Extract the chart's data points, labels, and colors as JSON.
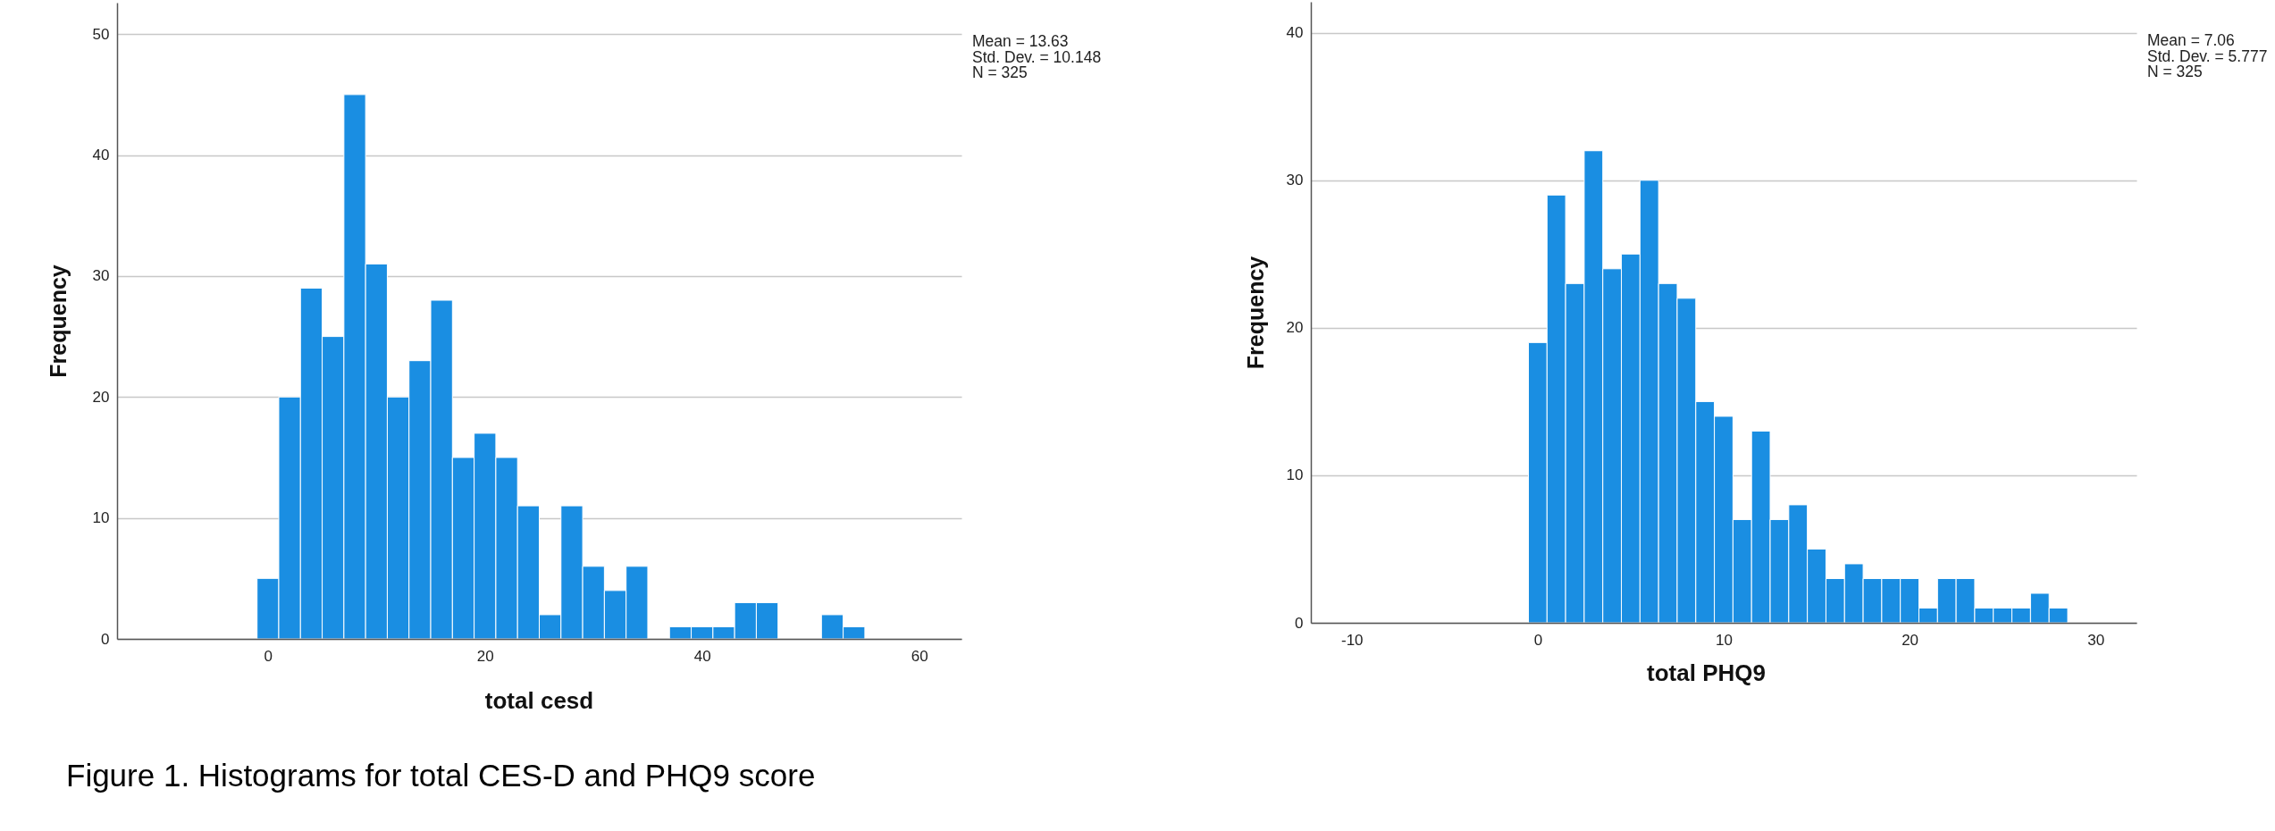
{
  "chart_data": [
    {
      "type": "histogram",
      "xlabel": "total cesd",
      "ylabel": "Frequency",
      "bins": [
        -1,
        1,
        3,
        5,
        7,
        9,
        11,
        13,
        15,
        17,
        19,
        21,
        23,
        25,
        27,
        29,
        31,
        33,
        35,
        37,
        39,
        41,
        43,
        45,
        47,
        49,
        51,
        53,
        55
      ],
      "values": [
        5,
        20,
        29,
        25,
        45,
        31,
        20,
        23,
        28,
        15,
        17,
        15,
        11,
        2,
        11,
        6,
        4,
        6,
        0,
        1,
        1,
        1,
        3,
        3,
        0,
        0,
        2,
        1
      ],
      "color": "#1a8ee2",
      "xlim": [
        -13.9,
        63.9
      ],
      "ylim": [
        0,
        52.6
      ],
      "xticks": [
        0,
        20,
        40,
        60
      ],
      "yticks": [
        0,
        10,
        20,
        30,
        40,
        50
      ],
      "grid": "y",
      "annotations": [
        "Mean = 13.63",
        "Std. Dev. = 10.148",
        "N = 325",
        "Figure 1. Histograms for total CES-D and PHQ9 score"
      ]
    },
    {
      "type": "histogram",
      "xlabel": "total PHQ9",
      "ylabel": "Frequency",
      "bins": [
        -0.5,
        0.5,
        1.5,
        2.5,
        3.5,
        4.5,
        5.5,
        6.5,
        7.5,
        8.5,
        9.5,
        10.5,
        11.5,
        12.5,
        13.5,
        14.5,
        15.5,
        16.5,
        17.5,
        18.5,
        19.5,
        20.5,
        21.5,
        22.5,
        23.5,
        24.5,
        25.5,
        26.5,
        27.5,
        28.5
      ],
      "values": [
        19,
        29,
        23,
        32,
        24,
        25,
        30,
        23,
        22,
        15,
        14,
        7,
        13,
        7,
        8,
        5,
        3,
        4,
        3,
        3,
        3,
        1,
        3,
        3,
        1,
        1,
        1,
        2,
        1
      ],
      "color": "#1a8ee2",
      "xlim": [
        -12.2,
        32.2
      ],
      "ylim": [
        0,
        42.1
      ],
      "xticks": [
        -10,
        0,
        10,
        20,
        30
      ],
      "yticks": [
        0,
        10,
        20,
        30,
        40
      ],
      "grid": "y",
      "annotations": [
        "Mean = 7.06",
        "Std. Dev. = 5.777",
        "N = 325"
      ]
    }
  ]
}
